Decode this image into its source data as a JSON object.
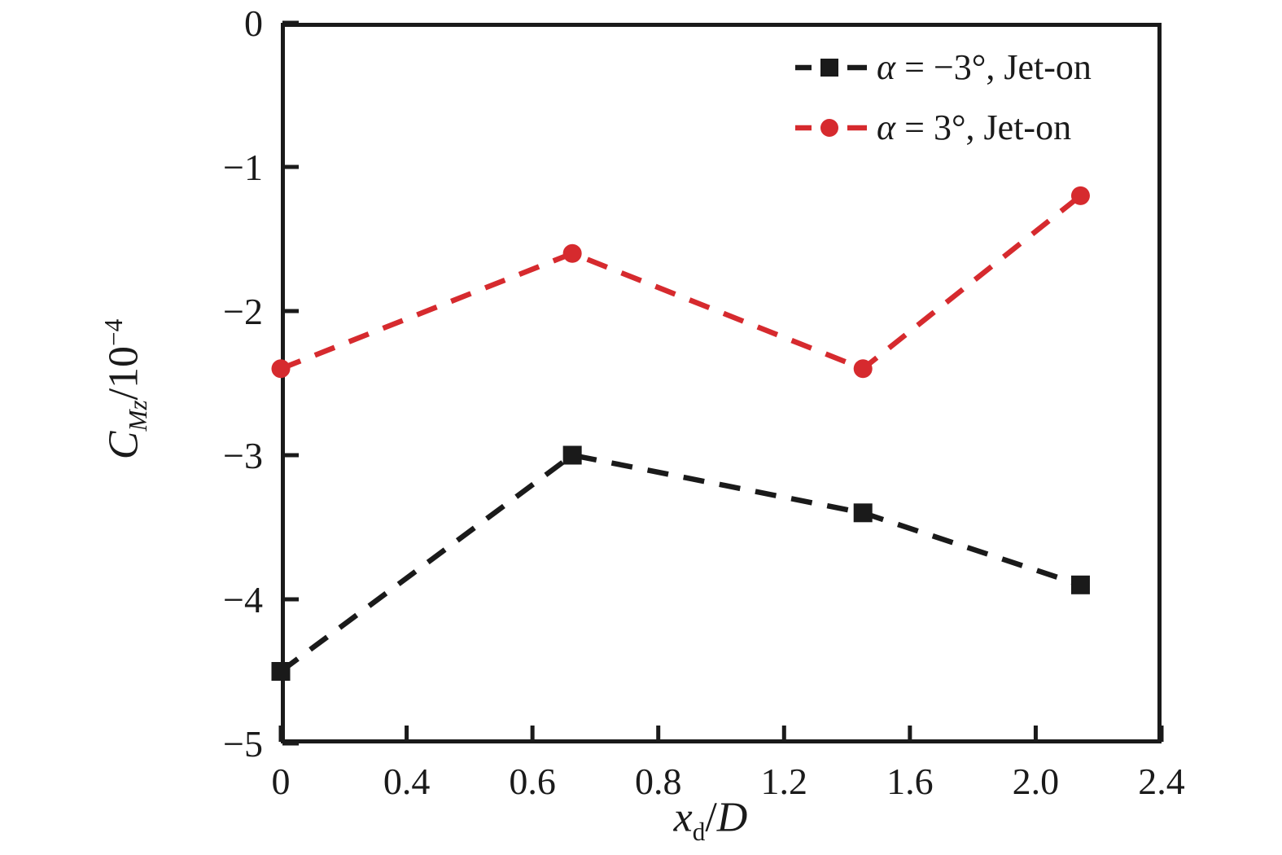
{
  "chart_data": {
    "type": "line",
    "title": "",
    "xlabel": "x_d/D",
    "ylabel": "C_Mz/10^−4",
    "xlabel_parts": {
      "var": "x",
      "sub": "d",
      "slash": "/",
      "denom": "D"
    },
    "ylabel_parts": {
      "var": "C",
      "sub": "Mz",
      "divider": "/10",
      "exponent": "−4"
    },
    "x_axis": {
      "tick_labels": [
        "0",
        "0.4",
        "0.6",
        "0.8",
        "1.2",
        "1.6",
        "2.0",
        "2.4"
      ],
      "ticks_equally_spaced": true,
      "tick_direction": "in"
    },
    "y_axis": {
      "tick_labels": [
        "0",
        "−1",
        "−2",
        "−3",
        "−4",
        "−5"
      ],
      "tick_values": [
        0,
        -1,
        -2,
        -3,
        -4,
        -5
      ],
      "range": [
        0,
        -5
      ],
      "tick_direction": "in"
    },
    "grid": false,
    "legend_position": "top-right-inside",
    "frame_color": "#1a1a1a",
    "series": [
      {
        "name": "alpha-minus-3-jet-on",
        "label": "α = −3°, Jet-on",
        "label_parts": {
          "alpha": "α",
          "eq": " = ",
          "angle": "−3°",
          "rest": ", Jet-on"
        },
        "color": "#1a1a1a",
        "marker": "square",
        "linestyle": "dashed",
        "x": [
          0,
          0.66,
          1.45,
          2.15
        ],
        "x_axis_fraction": [
          0,
          0.331,
          0.661,
          0.908
        ],
        "y": [
          -4.5,
          -3.0,
          -3.4,
          -3.9
        ]
      },
      {
        "name": "alpha-plus-3-jet-on",
        "label": "α = 3°, Jet-on",
        "label_parts": {
          "alpha": "α",
          "eq": " = ",
          "angle": "3°",
          "rest": ", Jet-on"
        },
        "color": "#d62a2e",
        "marker": "circle",
        "linestyle": "dashed",
        "x": [
          0,
          0.66,
          1.45,
          2.15
        ],
        "x_axis_fraction": [
          0,
          0.331,
          0.661,
          0.908
        ],
        "y": [
          -2.4,
          -1.6,
          -2.4,
          -1.2
        ]
      }
    ]
  }
}
